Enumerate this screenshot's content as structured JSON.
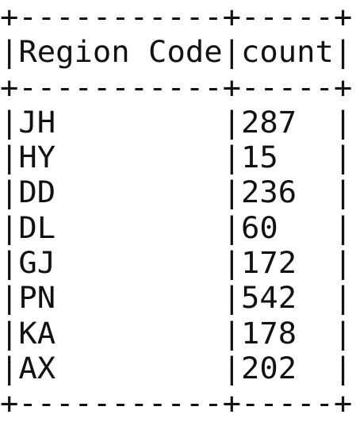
{
  "table": {
    "columns": [
      "Region Code",
      "count"
    ],
    "rows": [
      {
        "region_code": "JH",
        "count": "287"
      },
      {
        "region_code": "HY",
        "count": "15"
      },
      {
        "region_code": "DD",
        "count": "236"
      },
      {
        "region_code": "DL",
        "count": "60"
      },
      {
        "region_code": "GJ",
        "count": "172"
      },
      {
        "region_code": "PN",
        "count": "542"
      },
      {
        "region_code": "KA",
        "count": "178"
      },
      {
        "region_code": "AX",
        "count": "202"
      }
    ]
  }
}
